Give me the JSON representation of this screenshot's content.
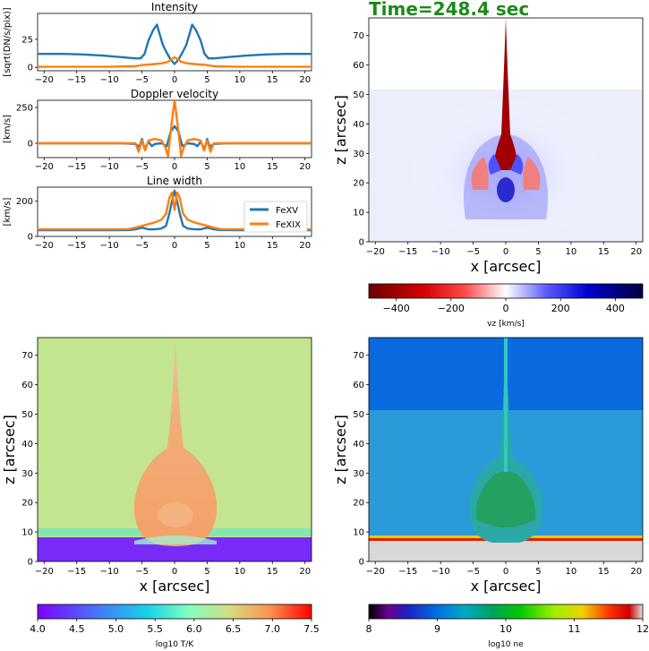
{
  "time_label": "Time=248.4 sec",
  "legend": [
    "FeXV",
    "FeXIX"
  ],
  "colors": {
    "fexv": "#1f77b4",
    "fexix": "#ff7f0e",
    "time": "#1a8a1a"
  },
  "line_panels": [
    {
      "title": "Intensity",
      "ylabel": "[sqrt(DN/s/pix)]",
      "ylim": [
        -3,
        48
      ],
      "yticks": [
        "0",
        "25"
      ],
      "ytick_values": [
        0,
        25
      ]
    },
    {
      "title": "Doppler velocity",
      "ylabel": "[km/s]",
      "ylim": [
        -100,
        300
      ],
      "yticks": [
        "0",
        "250"
      ],
      "ytick_values": [
        0,
        250
      ]
    },
    {
      "title": "Line width",
      "ylabel": "[km/s]",
      "ylim": [
        0,
        280
      ],
      "yticks": [
        "0",
        "200"
      ],
      "ytick_values": [
        0,
        200
      ]
    }
  ],
  "x_ticks": [
    "−20",
    "−15",
    "−10",
    "−5",
    "0",
    "5",
    "10",
    "15",
    "20"
  ],
  "x_tick_values": [
    -20,
    -15,
    -10,
    -5,
    0,
    5,
    10,
    15,
    20
  ],
  "xlim": [
    -21,
    21
  ],
  "z_ticks": [
    "0",
    "10",
    "20",
    "30",
    "40",
    "50",
    "60",
    "70"
  ],
  "z_tick_values": [
    0,
    10,
    20,
    30,
    40,
    50,
    60,
    70
  ],
  "zlim": [
    0,
    76
  ],
  "map_xlabel": "x [arcsec]",
  "map_zlabel": "z [arcsec]",
  "colorbars": {
    "vz": {
      "label": "vz [km/s]",
      "ticks": [
        "−400",
        "−200",
        "0",
        "200",
        "400"
      ],
      "tick_values": [
        -400,
        -200,
        0,
        200,
        400
      ],
      "range": [
        -500,
        500
      ]
    },
    "temp": {
      "label": "log10 T/K",
      "ticks": [
        "4.0",
        "4.5",
        "5.0",
        "5.5",
        "6.0",
        "6.5",
        "7.0",
        "7.5"
      ],
      "tick_values": [
        4.0,
        4.5,
        5.0,
        5.5,
        6.0,
        6.5,
        7.0,
        7.5
      ],
      "range": [
        4.0,
        7.5
      ]
    },
    "ne": {
      "label": "log10 ne",
      "ticks": [
        "8",
        "9",
        "10",
        "11",
        "12"
      ],
      "tick_values": [
        8,
        9,
        10,
        11,
        12
      ],
      "range": [
        8,
        12
      ]
    }
  },
  "chart_data": [
    {
      "type": "line",
      "title": "Intensity",
      "ylabel": "[sqrt(DN/s/pix)]",
      "xlim": [
        -21,
        21
      ],
      "ylim": [
        -3,
        48
      ],
      "series": [
        {
          "name": "FeXV",
          "x": [
            -21,
            -17,
            -14,
            -11,
            -8,
            -6,
            -5.2,
            -4.6,
            -4.0,
            -3.3,
            -2.7,
            -2.3,
            -1.8,
            -1.2,
            -0.6,
            0,
            0.6,
            1.2,
            1.8,
            2.3,
            2.7,
            3.3,
            4.0,
            4.6,
            5.2,
            6,
            8,
            11,
            14,
            17,
            21
          ],
          "y": [
            12,
            12,
            11.5,
            10.5,
            9,
            8,
            8,
            12,
            24,
            33,
            38,
            30,
            20,
            13,
            7,
            3,
            7,
            13,
            20,
            30,
            38,
            33,
            24,
            12,
            8,
            8,
            9,
            10.5,
            11.5,
            12,
            12
          ]
        },
        {
          "name": "FeXIX",
          "x": [
            -21,
            -10,
            -6,
            -5,
            -4,
            -3,
            -2,
            -1,
            0,
            1,
            2,
            3,
            4,
            5,
            6,
            10,
            21
          ],
          "y": [
            0.5,
            0.5,
            1,
            2,
            2.5,
            3,
            3.5,
            5,
            9,
            5,
            3.5,
            3,
            2.5,
            2,
            1,
            0.5,
            0.5
          ]
        }
      ]
    },
    {
      "type": "line",
      "title": "Doppler velocity",
      "ylabel": "[km/s]",
      "xlim": [
        -21,
        21
      ],
      "ylim": [
        -100,
        300
      ],
      "series": [
        {
          "name": "FeXV",
          "x": [
            -21,
            -8,
            -6,
            -5.4,
            -5,
            -4.6,
            -4,
            -3.5,
            -3,
            -2,
            -1.2,
            -0.6,
            0,
            0.6,
            1.2,
            2,
            3,
            3.5,
            4,
            4.6,
            5,
            5.4,
            6,
            8,
            21
          ],
          "y": [
            0,
            0,
            -5,
            -25,
            30,
            -40,
            10,
            -20,
            -5,
            0,
            -20,
            80,
            120,
            80,
            -20,
            0,
            -5,
            -20,
            10,
            -40,
            30,
            -25,
            -5,
            0,
            0
          ]
        },
        {
          "name": "FeXIX",
          "x": [
            -21,
            -8,
            -6,
            -5.5,
            -5,
            -4.5,
            -4,
            -3,
            -2,
            -1.4,
            -1.0,
            -0.5,
            0,
            0.5,
            1.0,
            1.4,
            2,
            3,
            4,
            4.5,
            5,
            5.5,
            6,
            8,
            21
          ],
          "y": [
            0,
            0,
            0,
            -60,
            20,
            -50,
            20,
            30,
            20,
            -30,
            -90,
            120,
            300,
            120,
            -90,
            -30,
            20,
            30,
            20,
            -50,
            20,
            -60,
            0,
            0,
            0
          ]
        }
      ]
    },
    {
      "type": "line",
      "title": "Line width",
      "ylabel": "[km/s]",
      "xlim": [
        -21,
        21
      ],
      "ylim": [
        0,
        280
      ],
      "series": [
        {
          "name": "FeXV",
          "x": [
            -21,
            -10,
            -7,
            -6,
            -5,
            -4,
            -3,
            -2,
            -1.3,
            -0.8,
            -0.4,
            0,
            0.4,
            0.8,
            1.3,
            2,
            3,
            4,
            5,
            6,
            7,
            10,
            21
          ],
          "y": [
            35,
            35,
            36,
            40,
            50,
            40,
            40,
            45,
            60,
            130,
            200,
            260,
            200,
            130,
            60,
            45,
            40,
            40,
            50,
            40,
            36,
            35,
            35
          ]
        },
        {
          "name": "FeXIX",
          "x": [
            -21,
            -10,
            -7,
            -6,
            -5,
            -4,
            -3,
            -2,
            -1.3,
            -0.8,
            -0.4,
            0,
            0.4,
            0.8,
            1.3,
            2,
            3,
            4,
            5,
            6,
            7,
            10,
            21
          ],
          "y": [
            40,
            40,
            42,
            50,
            60,
            70,
            80,
            95,
            130,
            220,
            250,
            150,
            250,
            220,
            130,
            95,
            80,
            70,
            60,
            50,
            42,
            40,
            40
          ]
        }
      ]
    }
  ]
}
